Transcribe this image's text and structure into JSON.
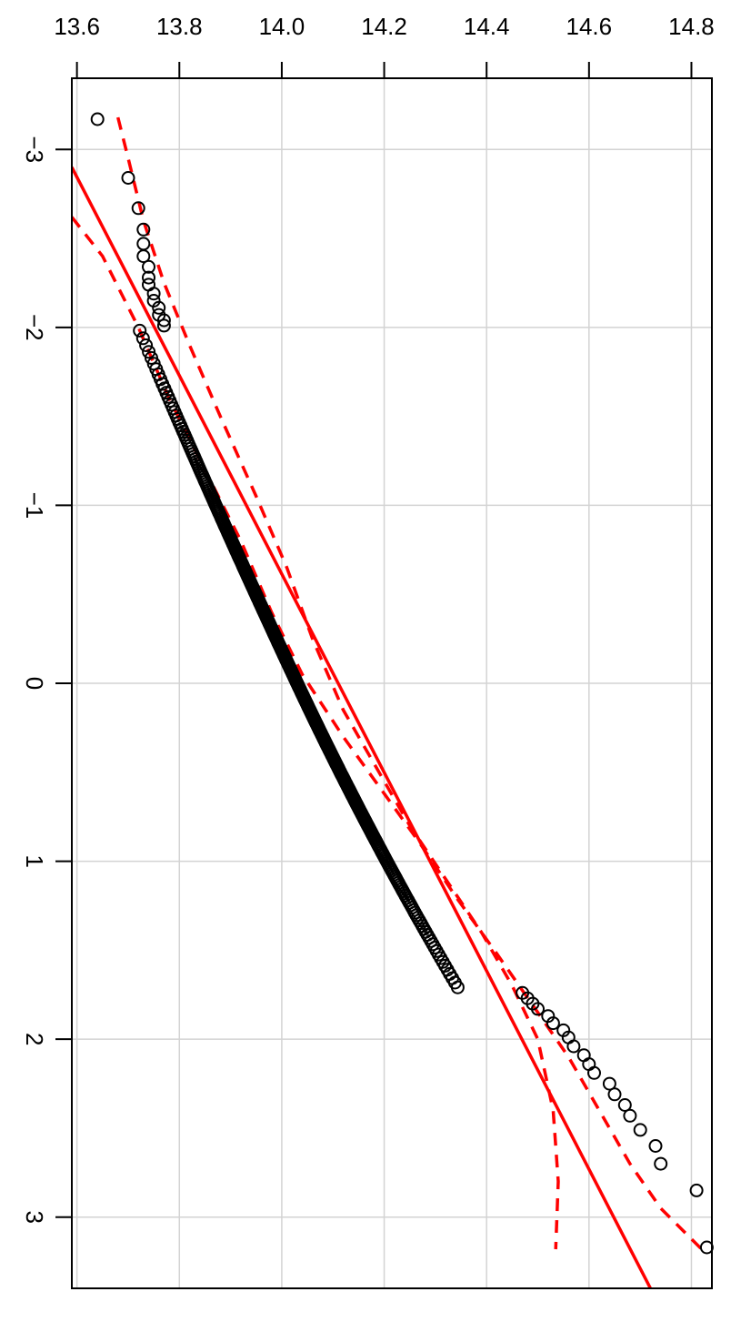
{
  "chart_data": {
    "type": "scatter",
    "title": "",
    "xlabel": "",
    "ylabel": "",
    "x_axis_position": "top",
    "y_axis_orientation": "rotated",
    "xlim": [
      13.59,
      14.84
    ],
    "ylim": [
      -3.4,
      3.4
    ],
    "x_ticks": [
      13.6,
      13.8,
      14.0,
      14.2,
      14.4,
      14.6,
      14.8
    ],
    "x_tick_labels": [
      "13.6",
      "13.8",
      "14.0",
      "14.2",
      "14.4",
      "14.6",
      "14.8"
    ],
    "y_ticks": [
      -3,
      -2,
      -1,
      0,
      1,
      2,
      3
    ],
    "y_tick_labels": [
      "−3",
      "−2",
      "−1",
      "0",
      "1",
      "2",
      "3"
    ],
    "grid": true,
    "colors": {
      "points": "#000000",
      "line": "#ff0000",
      "grid": "#d3d3d3"
    },
    "points_summary": {
      "n": 400,
      "sample_min": 13.64,
      "sample_max": 14.83,
      "tail_points": [
        [
          13.64,
          -3.17
        ],
        [
          13.7,
          -2.84
        ],
        [
          13.72,
          -2.67
        ],
        [
          13.73,
          -2.55
        ],
        [
          13.73,
          -2.47
        ],
        [
          13.73,
          -2.4
        ],
        [
          13.74,
          -2.34
        ],
        [
          13.74,
          -2.28
        ],
        [
          13.74,
          -2.24
        ],
        [
          13.75,
          -2.19
        ],
        [
          13.75,
          -2.15
        ],
        [
          13.76,
          -2.11
        ],
        [
          13.76,
          -2.07
        ],
        [
          13.77,
          -2.04
        ],
        [
          13.77,
          -2.01
        ],
        [
          14.47,
          1.74
        ],
        [
          14.48,
          1.77
        ],
        [
          14.49,
          1.8
        ],
        [
          14.5,
          1.83
        ],
        [
          14.52,
          1.87
        ],
        [
          14.53,
          1.91
        ],
        [
          14.55,
          1.95
        ],
        [
          14.56,
          1.99
        ],
        [
          14.57,
          2.04
        ],
        [
          14.59,
          2.09
        ],
        [
          14.6,
          2.14
        ],
        [
          14.61,
          2.19
        ],
        [
          14.64,
          2.25
        ],
        [
          14.65,
          2.31
        ],
        [
          14.67,
          2.37
        ],
        [
          14.68,
          2.43
        ],
        [
          14.7,
          2.51
        ],
        [
          14.73,
          2.6
        ],
        [
          14.74,
          2.7
        ],
        [
          14.81,
          2.85
        ],
        [
          14.83,
          3.17
        ]
      ]
    },
    "reference_line": {
      "x0": 13.59,
      "y0": -2.9,
      "x1": 14.72,
      "y1": 3.4
    },
    "confidence_band": {
      "lower": [
        [
          13.68,
          -3.18
        ],
        [
          13.7,
          -2.95
        ],
        [
          13.73,
          -2.6
        ],
        [
          13.77,
          -2.25
        ],
        [
          13.82,
          -1.9
        ],
        [
          13.88,
          -1.5
        ],
        [
          13.95,
          -1.05
        ],
        [
          14.01,
          -0.65
        ],
        [
          14.06,
          -0.25
        ],
        [
          14.12,
          0.15
        ],
        [
          14.19,
          0.5
        ],
        [
          14.25,
          0.8
        ],
        [
          14.32,
          1.1
        ],
        [
          14.39,
          1.4
        ],
        [
          14.45,
          1.7
        ],
        [
          14.5,
          2.0
        ],
        [
          14.53,
          2.4
        ],
        [
          14.54,
          2.8
        ],
        [
          14.535,
          3.18
        ]
      ],
      "upper": [
        [
          13.59,
          -2.62
        ],
        [
          13.65,
          -2.4
        ],
        [
          13.72,
          -2.0
        ],
        [
          13.78,
          -1.6
        ],
        [
          13.85,
          -1.2
        ],
        [
          13.92,
          -0.8
        ],
        [
          13.98,
          -0.4
        ],
        [
          14.04,
          -0.05
        ],
        [
          14.12,
          0.3
        ],
        [
          14.2,
          0.62
        ],
        [
          14.27,
          0.9
        ],
        [
          14.34,
          1.2
        ],
        [
          14.42,
          1.52
        ],
        [
          14.5,
          1.85
        ],
        [
          14.56,
          2.1
        ],
        [
          14.62,
          2.4
        ],
        [
          14.68,
          2.7
        ],
        [
          14.74,
          2.95
        ],
        [
          14.82,
          3.18
        ]
      ]
    }
  }
}
